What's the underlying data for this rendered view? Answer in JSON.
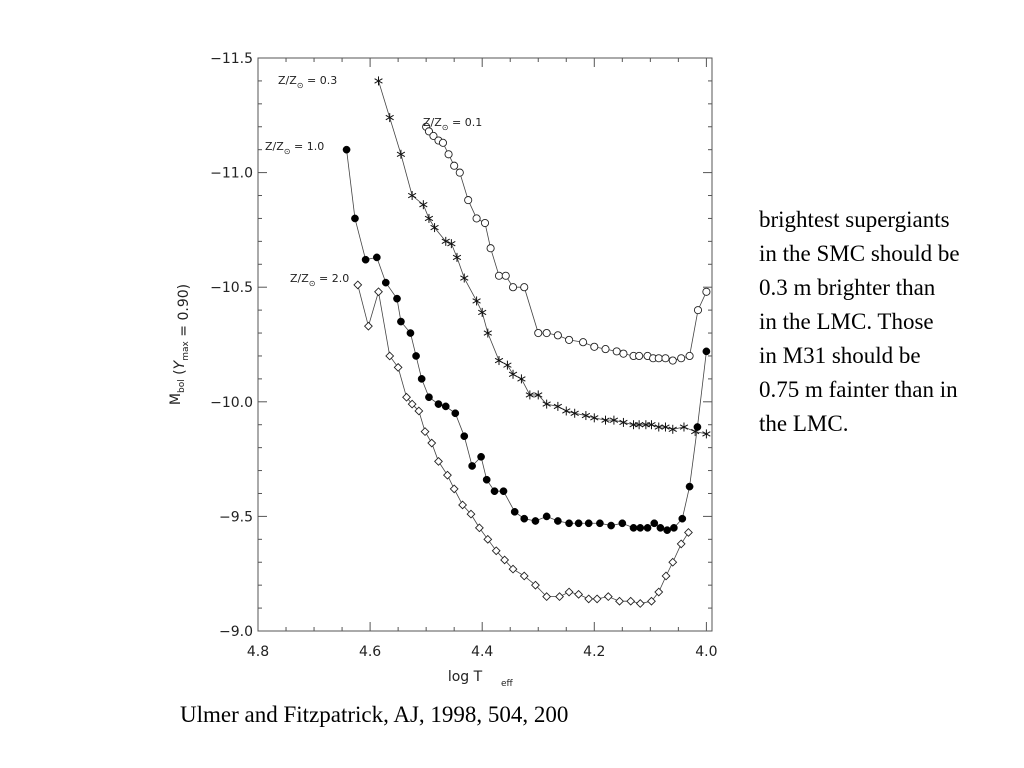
{
  "chart_data": {
    "type": "line",
    "title": "",
    "xlabel": {
      "main": "log T",
      "sub": "eff"
    },
    "ylabel": {
      "main": "M",
      "sub": "bol",
      "paren_open": "(",
      "y": "Y",
      "y_sub": "max",
      "rest": " = 0.90)"
    },
    "xlim": [
      4.8,
      3.99
    ],
    "ylim": [
      -11.5,
      -9.0
    ],
    "y_inverted": true,
    "x_ticks": [
      "4.8",
      "4.6",
      "4.4",
      "4.2",
      "4.0"
    ],
    "x_tick_values": [
      4.8,
      4.6,
      4.4,
      4.2,
      4.0
    ],
    "y_ticks": [
      "−11.5",
      "−11.0",
      "−10.5",
      "−10.0",
      "−9.5",
      "−9.0"
    ],
    "y_tick_values": [
      -11.5,
      -11.0,
      -10.5,
      -10.0,
      -9.5,
      -9.0
    ],
    "grid": false,
    "series": [
      {
        "name": "Z/Z⊙ = 0.3",
        "label_prefix": "Z/Z",
        "label_value": " = 0.3",
        "marker": "asterisk",
        "x": [
          4.585,
          4.565,
          4.545,
          4.525,
          4.505,
          4.495,
          4.485,
          4.465,
          4.455,
          4.445,
          4.432,
          4.41,
          4.4,
          4.39,
          4.37,
          4.355,
          4.345,
          4.33,
          4.315,
          4.3,
          4.285,
          4.265,
          4.25,
          4.235,
          4.215,
          4.2,
          4.18,
          4.165,
          4.148,
          4.13,
          4.12,
          4.108,
          4.098,
          4.085,
          4.073,
          4.06,
          4.04,
          4.02,
          4.0
        ],
        "y": [
          -11.4,
          -11.24,
          -11.08,
          -10.9,
          -10.86,
          -10.8,
          -10.76,
          -10.7,
          -10.69,
          -10.63,
          -10.54,
          -10.44,
          -10.39,
          -10.3,
          -10.18,
          -10.16,
          -10.12,
          -10.1,
          -10.03,
          -10.03,
          -9.99,
          -9.98,
          -9.96,
          -9.95,
          -9.94,
          -9.93,
          -9.92,
          -9.92,
          -9.91,
          -9.9,
          -9.9,
          -9.9,
          -9.9,
          -9.89,
          -9.89,
          -9.88,
          -9.89,
          -9.87,
          -9.86
        ]
      },
      {
        "name": "Z/Z⊙ = 0.1",
        "label_prefix": "Z/Z",
        "label_value": " = 0.1",
        "marker": "open-circle",
        "x": [
          4.5,
          4.495,
          4.487,
          4.478,
          4.47,
          4.46,
          4.45,
          4.44,
          4.425,
          4.41,
          4.395,
          4.385,
          4.37,
          4.358,
          4.345,
          4.325,
          4.3,
          4.285,
          4.265,
          4.245,
          4.22,
          4.2,
          4.18,
          4.16,
          4.148,
          4.13,
          4.12,
          4.105,
          4.095,
          4.085,
          4.073,
          4.06,
          4.045,
          4.03,
          4.015,
          4.0
        ],
        "y": [
          -11.2,
          -11.18,
          -11.16,
          -11.14,
          -11.13,
          -11.08,
          -11.03,
          -11.0,
          -10.88,
          -10.8,
          -10.78,
          -10.67,
          -10.55,
          -10.55,
          -10.5,
          -10.5,
          -10.3,
          -10.3,
          -10.29,
          -10.27,
          -10.26,
          -10.24,
          -10.23,
          -10.22,
          -10.21,
          -10.2,
          -10.2,
          -10.2,
          -10.19,
          -10.19,
          -10.19,
          -10.18,
          -10.19,
          -10.2,
          -10.4,
          -10.48
        ]
      },
      {
        "name": "Z/Z⊙ = 1.0",
        "label_prefix": "Z/Z",
        "label_value": " = 1.0",
        "marker": "filled-circle",
        "x": [
          4.642,
          4.627,
          4.608,
          4.588,
          4.572,
          4.552,
          4.545,
          4.528,
          4.518,
          4.508,
          4.495,
          4.478,
          4.465,
          4.448,
          4.432,
          4.418,
          4.402,
          4.392,
          4.378,
          4.362,
          4.342,
          4.325,
          4.305,
          4.285,
          4.265,
          4.245,
          4.228,
          4.21,
          4.19,
          4.17,
          4.15,
          4.13,
          4.118,
          4.105,
          4.093,
          4.082,
          4.07,
          4.058,
          4.043,
          4.03,
          4.016,
          4.0
        ],
        "y": [
          -11.1,
          -10.8,
          -10.62,
          -10.63,
          -10.52,
          -10.45,
          -10.35,
          -10.3,
          -10.2,
          -10.1,
          -10.02,
          -9.99,
          -9.98,
          -9.95,
          -9.85,
          -9.72,
          -9.76,
          -9.66,
          -9.61,
          -9.61,
          -9.52,
          -9.49,
          -9.48,
          -9.5,
          -9.48,
          -9.47,
          -9.47,
          -9.47,
          -9.47,
          -9.46,
          -9.47,
          -9.45,
          -9.45,
          -9.45,
          -9.47,
          -9.45,
          -9.44,
          -9.45,
          -9.49,
          -9.63,
          -9.89,
          -10.22
        ]
      },
      {
        "name": "Z/Z⊙ = 2.0",
        "label_prefix": "Z/Z",
        "label_value": " = 2.0",
        "marker": "open-diamond",
        "x": [
          4.622,
          4.603,
          4.585,
          4.565,
          4.55,
          4.535,
          4.525,
          4.513,
          4.502,
          4.49,
          4.478,
          4.462,
          4.45,
          4.435,
          4.42,
          4.405,
          4.39,
          4.375,
          4.36,
          4.345,
          4.325,
          4.305,
          4.285,
          4.262,
          4.245,
          4.228,
          4.21,
          4.195,
          4.175,
          4.155,
          4.135,
          4.118,
          4.098,
          4.085,
          4.072,
          4.06,
          4.045,
          4.032
        ],
        "y": [
          -10.51,
          -10.33,
          -10.48,
          -10.2,
          -10.15,
          -10.02,
          -9.99,
          -9.96,
          -9.87,
          -9.82,
          -9.74,
          -9.68,
          -9.62,
          -9.55,
          -9.51,
          -9.45,
          -9.4,
          -9.35,
          -9.31,
          -9.27,
          -9.24,
          -9.2,
          -9.15,
          -9.15,
          -9.17,
          -9.16,
          -9.14,
          -9.14,
          -9.15,
          -9.13,
          -9.13,
          -9.12,
          -9.13,
          -9.17,
          -9.24,
          -9.3,
          -9.38,
          -9.43
        ]
      }
    ]
  },
  "note_lines": [
    "brightest supergiants",
    "in the SMC should be",
    "0.3 m brighter than",
    "in the LMC. Those",
    "in M31 should be",
    "0.75 m fainter than in",
    "the LMC."
  ],
  "citation": "Ulmer and Fitzpatrick, AJ, 1998, 504, 200"
}
